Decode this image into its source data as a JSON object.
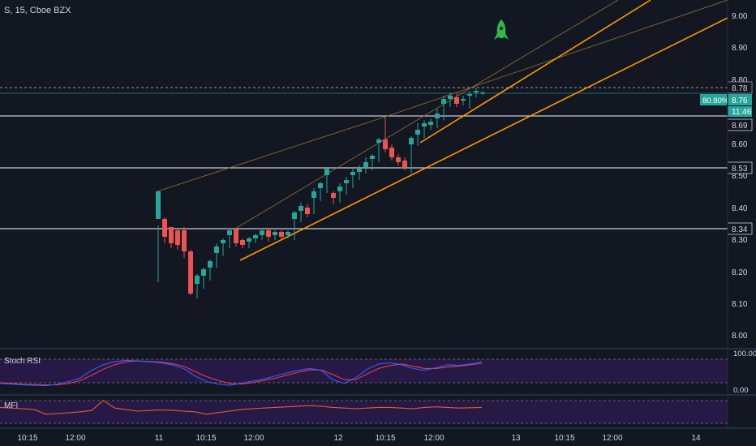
{
  "header": {
    "symbol": "S, 15, Cboe BZX"
  },
  "colors": {
    "background": "#131722",
    "up": "#26a69a",
    "down": "#ef5350",
    "level_line": "#c9cdd6",
    "trend_thick": "#ff9800",
    "trend_thin": "#8a6a3a",
    "stoch_k": "#2962ff",
    "stoch_d": "#f23645",
    "mfi": "#e65c2e",
    "rsi_band": "#2a1a4a",
    "rocket": "#2eb84d"
  },
  "rocket_icon": "rocket-icon",
  "price_axis": {
    "ticks": [
      "9.00",
      "8.90",
      "8.80",
      "8.60",
      "8.50",
      "8.40",
      "8.30",
      "8.20",
      "8.10",
      "8.00"
    ]
  },
  "levels": [
    "8.69",
    "8.53",
    "8.34"
  ],
  "last_price": {
    "value": "8.78"
  },
  "current_tag": {
    "percent": "80.80%",
    "value": "8.76",
    "countdown": "11:46"
  },
  "time_axis": {
    "labels": [
      "10:15",
      "12:00",
      "11",
      "10:15",
      "12:00",
      "12",
      "10:15",
      "12:00",
      "13",
      "10:15",
      "12:00",
      "14"
    ]
  },
  "stoch_rsi": {
    "label": "Stoch RSI",
    "ticks": [
      "100.00",
      "0.00"
    ],
    "k": [
      20,
      18,
      16,
      15,
      14,
      18,
      25,
      35,
      55,
      70,
      78,
      82,
      80,
      78,
      75,
      70,
      60,
      40,
      25,
      18,
      15,
      20,
      26,
      32,
      40,
      48,
      55,
      60,
      55,
      30,
      20,
      35,
      58,
      72,
      75,
      70,
      60,
      55,
      62,
      70,
      68,
      72,
      78
    ],
    "d": [
      22,
      20,
      18,
      17,
      16,
      16,
      20,
      28,
      42,
      58,
      70,
      78,
      80,
      79,
      77,
      73,
      66,
      52,
      38,
      28,
      20,
      18,
      22,
      28,
      34,
      42,
      50,
      56,
      56,
      44,
      30,
      30,
      45,
      60,
      68,
      72,
      66,
      60,
      60,
      64,
      66,
      70,
      74
    ]
  },
  "mfi": {
    "label": "MFI",
    "values": [
      62,
      60,
      58,
      55,
      40,
      42,
      45,
      48,
      52,
      85,
      60,
      55,
      50,
      52,
      54,
      53,
      50,
      48,
      40,
      45,
      50,
      55,
      58,
      60,
      62,
      64,
      66,
      68,
      66,
      62,
      60,
      58,
      60,
      62,
      62,
      60,
      58,
      62,
      64,
      62,
      60,
      61,
      62
    ]
  }
}
